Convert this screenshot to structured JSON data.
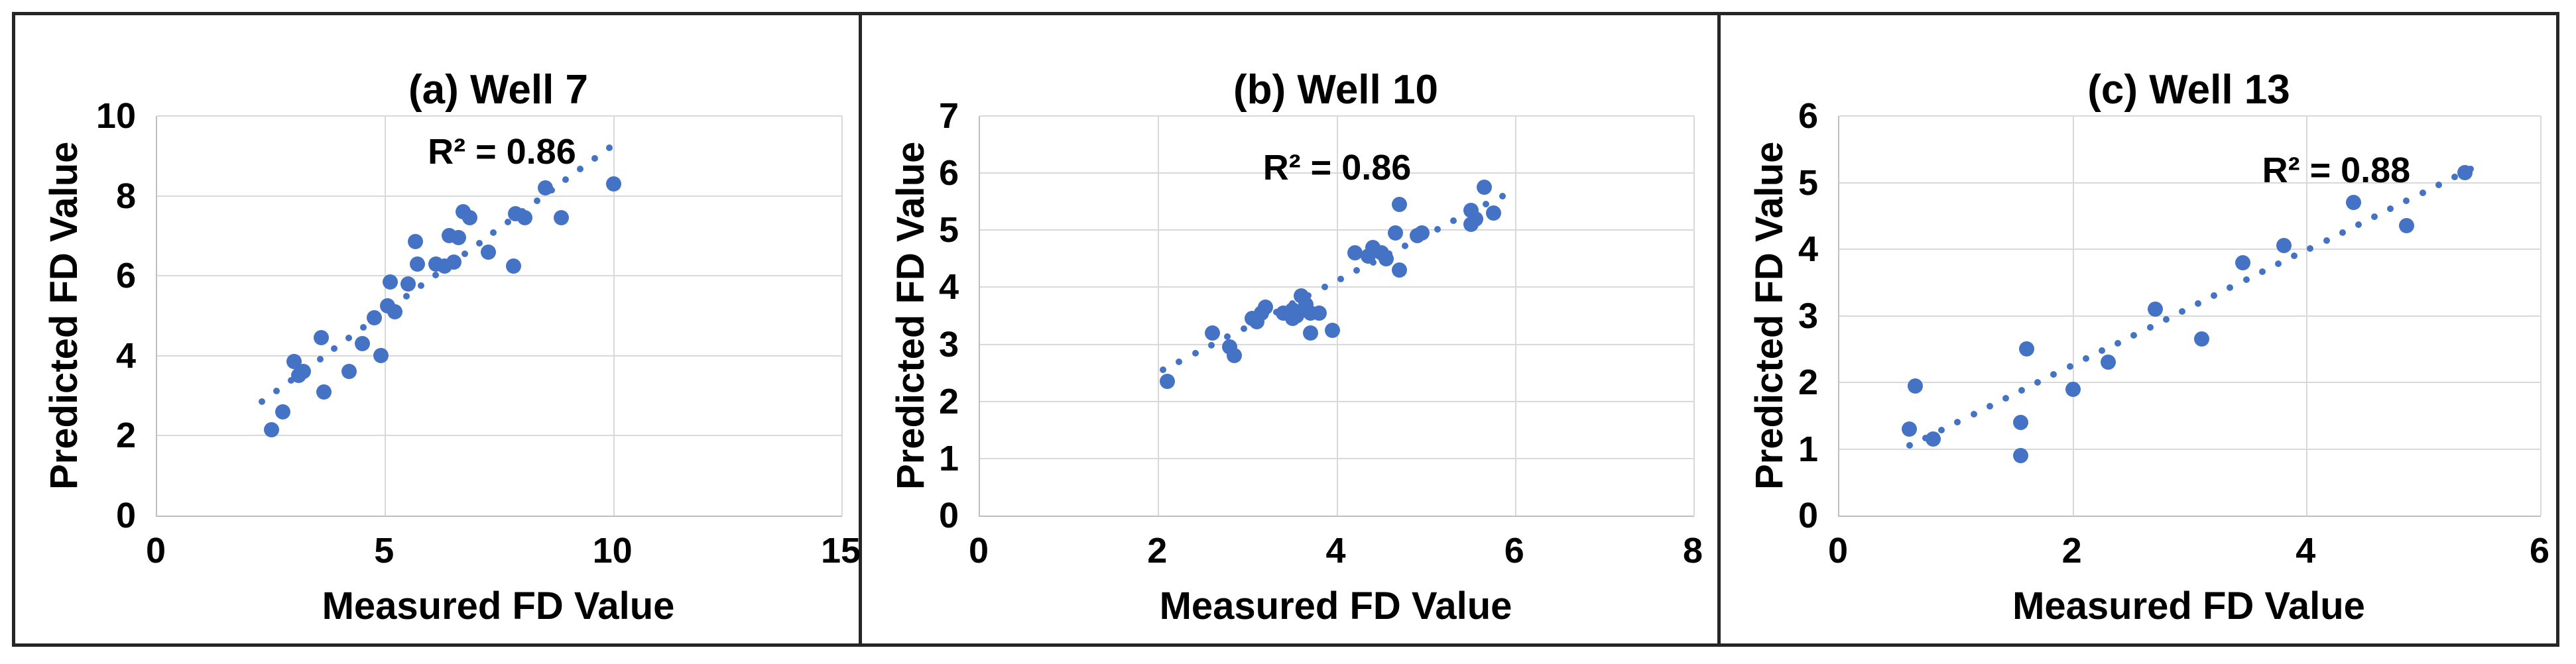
{
  "figure": {
    "background": "#ffffff",
    "frame_color": "#262626",
    "gridline_color": "#d9d9d9",
    "axis_line_color": "#bfbfbf",
    "text_color": "#000000",
    "marker_color": "#4472c4"
  },
  "chart_data": [
    {
      "type": "scatter",
      "title": "(a) Well 7",
      "r2": "R² = 0.86",
      "xlabel": "Measured FD Value",
      "ylabel": "Predicted FD Value",
      "xlim": [
        0,
        15
      ],
      "ylim": [
        0,
        10
      ],
      "xticks": [
        0,
        5,
        10,
        15
      ],
      "ytick_labels": [
        "0",
        "2",
        "4",
        "6",
        "8",
        "10"
      ],
      "xtick_labels": [
        "0",
        "5",
        "10",
        "15"
      ],
      "yticks": [
        0,
        2,
        4,
        6,
        8,
        10
      ],
      "grid": true,
      "legend": "none",
      "points": [
        [
          2.5,
          2.15
        ],
        [
          2.75,
          2.6
        ],
        [
          3.0,
          3.85
        ],
        [
          3.1,
          3.5
        ],
        [
          3.2,
          3.6
        ],
        [
          3.6,
          4.45
        ],
        [
          3.65,
          3.1
        ],
        [
          4.2,
          3.6
        ],
        [
          4.5,
          4.3
        ],
        [
          4.75,
          4.95
        ],
        [
          4.9,
          4.0
        ],
        [
          5.05,
          5.25
        ],
        [
          5.2,
          5.1
        ],
        [
          5.1,
          5.85
        ],
        [
          5.5,
          5.8
        ],
        [
          5.65,
          6.85
        ],
        [
          5.7,
          6.3
        ],
        [
          6.1,
          6.3
        ],
        [
          6.3,
          6.25
        ],
        [
          6.4,
          7.0
        ],
        [
          6.5,
          6.35
        ],
        [
          6.6,
          6.95
        ],
        [
          6.7,
          7.6
        ],
        [
          6.85,
          7.45
        ],
        [
          7.25,
          6.6
        ],
        [
          7.8,
          6.25
        ],
        [
          7.85,
          7.55
        ],
        [
          8.05,
          7.45
        ],
        [
          8.5,
          8.2
        ],
        [
          8.85,
          7.45
        ],
        [
          10.0,
          8.3
        ]
      ],
      "trendline": {
        "style": "dotted",
        "x1": 2.3,
        "y1": 2.85,
        "x2": 9.9,
        "y2": 9.2
      },
      "r2_pos": {
        "x": 7.55,
        "y": 9.1
      }
    },
    {
      "type": "scatter",
      "title": "(b) Well 10",
      "r2": "R² = 0.86",
      "xlabel": "Measured FD Value",
      "ylabel": "Predicted FD Value",
      "xlim": [
        0,
        8
      ],
      "ylim": [
        0,
        7
      ],
      "xticks": [
        0,
        2,
        4,
        6,
        8
      ],
      "yticks": [
        0,
        1,
        2,
        3,
        4,
        5,
        6,
        7
      ],
      "xtick_labels": [
        "0",
        "2",
        "4",
        "6",
        "8"
      ],
      "ytick_labels": [
        "0",
        "1",
        "2",
        "3",
        "4",
        "5",
        "6",
        "7"
      ],
      "grid": true,
      "legend": "none",
      "points": [
        [
          2.1,
          2.35
        ],
        [
          2.6,
          3.2
        ],
        [
          2.8,
          2.95
        ],
        [
          2.85,
          2.8
        ],
        [
          3.05,
          3.45
        ],
        [
          3.1,
          3.4
        ],
        [
          3.15,
          3.55
        ],
        [
          3.2,
          3.65
        ],
        [
          3.4,
          3.55
        ],
        [
          3.5,
          3.6
        ],
        [
          3.5,
          3.45
        ],
        [
          3.55,
          3.5
        ],
        [
          3.6,
          3.85
        ],
        [
          3.65,
          3.7
        ],
        [
          3.7,
          3.55
        ],
        [
          3.8,
          3.55
        ],
        [
          3.7,
          3.2
        ],
        [
          3.95,
          3.25
        ],
        [
          4.2,
          4.6
        ],
        [
          4.35,
          4.55
        ],
        [
          4.4,
          4.7
        ],
        [
          4.5,
          4.6
        ],
        [
          4.55,
          4.5
        ],
        [
          4.7,
          4.3
        ],
        [
          4.65,
          4.95
        ],
        [
          4.7,
          5.45
        ],
        [
          4.9,
          4.9
        ],
        [
          4.95,
          4.95
        ],
        [
          5.5,
          5.35
        ],
        [
          5.55,
          5.2
        ],
        [
          5.5,
          5.1
        ],
        [
          5.65,
          5.75
        ],
        [
          5.75,
          5.3
        ]
      ],
      "trendline": {
        "style": "dotted",
        "x1": 2.05,
        "y1": 2.55,
        "x2": 5.85,
        "y2": 5.6
      },
      "r2_pos": {
        "x": 4.0,
        "y": 6.1
      }
    },
    {
      "type": "scatter",
      "title": "(c) Well 13",
      "r2": "R² = 0.88",
      "xlabel": "Measured FD Value",
      "ylabel": "Predicted FD Value",
      "xlim": [
        0,
        6
      ],
      "ylim": [
        0,
        6
      ],
      "xticks": [
        0,
        2,
        4,
        6
      ],
      "yticks": [
        0,
        1,
        2,
        3,
        4,
        5,
        6
      ],
      "xtick_labels": [
        "0",
        "2",
        "4",
        "6"
      ],
      "ytick_labels": [
        "0",
        "1",
        "2",
        "3",
        "4",
        "5",
        "6"
      ],
      "grid": true,
      "legend": "none",
      "points": [
        [
          0.6,
          1.3
        ],
        [
          0.65,
          1.95
        ],
        [
          0.8,
          1.15
        ],
        [
          1.55,
          0.9
        ],
        [
          1.55,
          1.4
        ],
        [
          1.6,
          2.5
        ],
        [
          2.0,
          1.9
        ],
        [
          2.3,
          2.3
        ],
        [
          2.7,
          3.1
        ],
        [
          3.1,
          2.65
        ],
        [
          3.45,
          3.8
        ],
        [
          3.8,
          4.05
        ],
        [
          4.4,
          4.7
        ],
        [
          4.85,
          4.35
        ],
        [
          5.35,
          5.15
        ]
      ],
      "trendline": {
        "style": "dotted",
        "x1": 0.6,
        "y1": 1.05,
        "x2": 5.4,
        "y2": 5.2
      },
      "r2_pos": {
        "x": 4.25,
        "y": 5.18
      }
    }
  ]
}
